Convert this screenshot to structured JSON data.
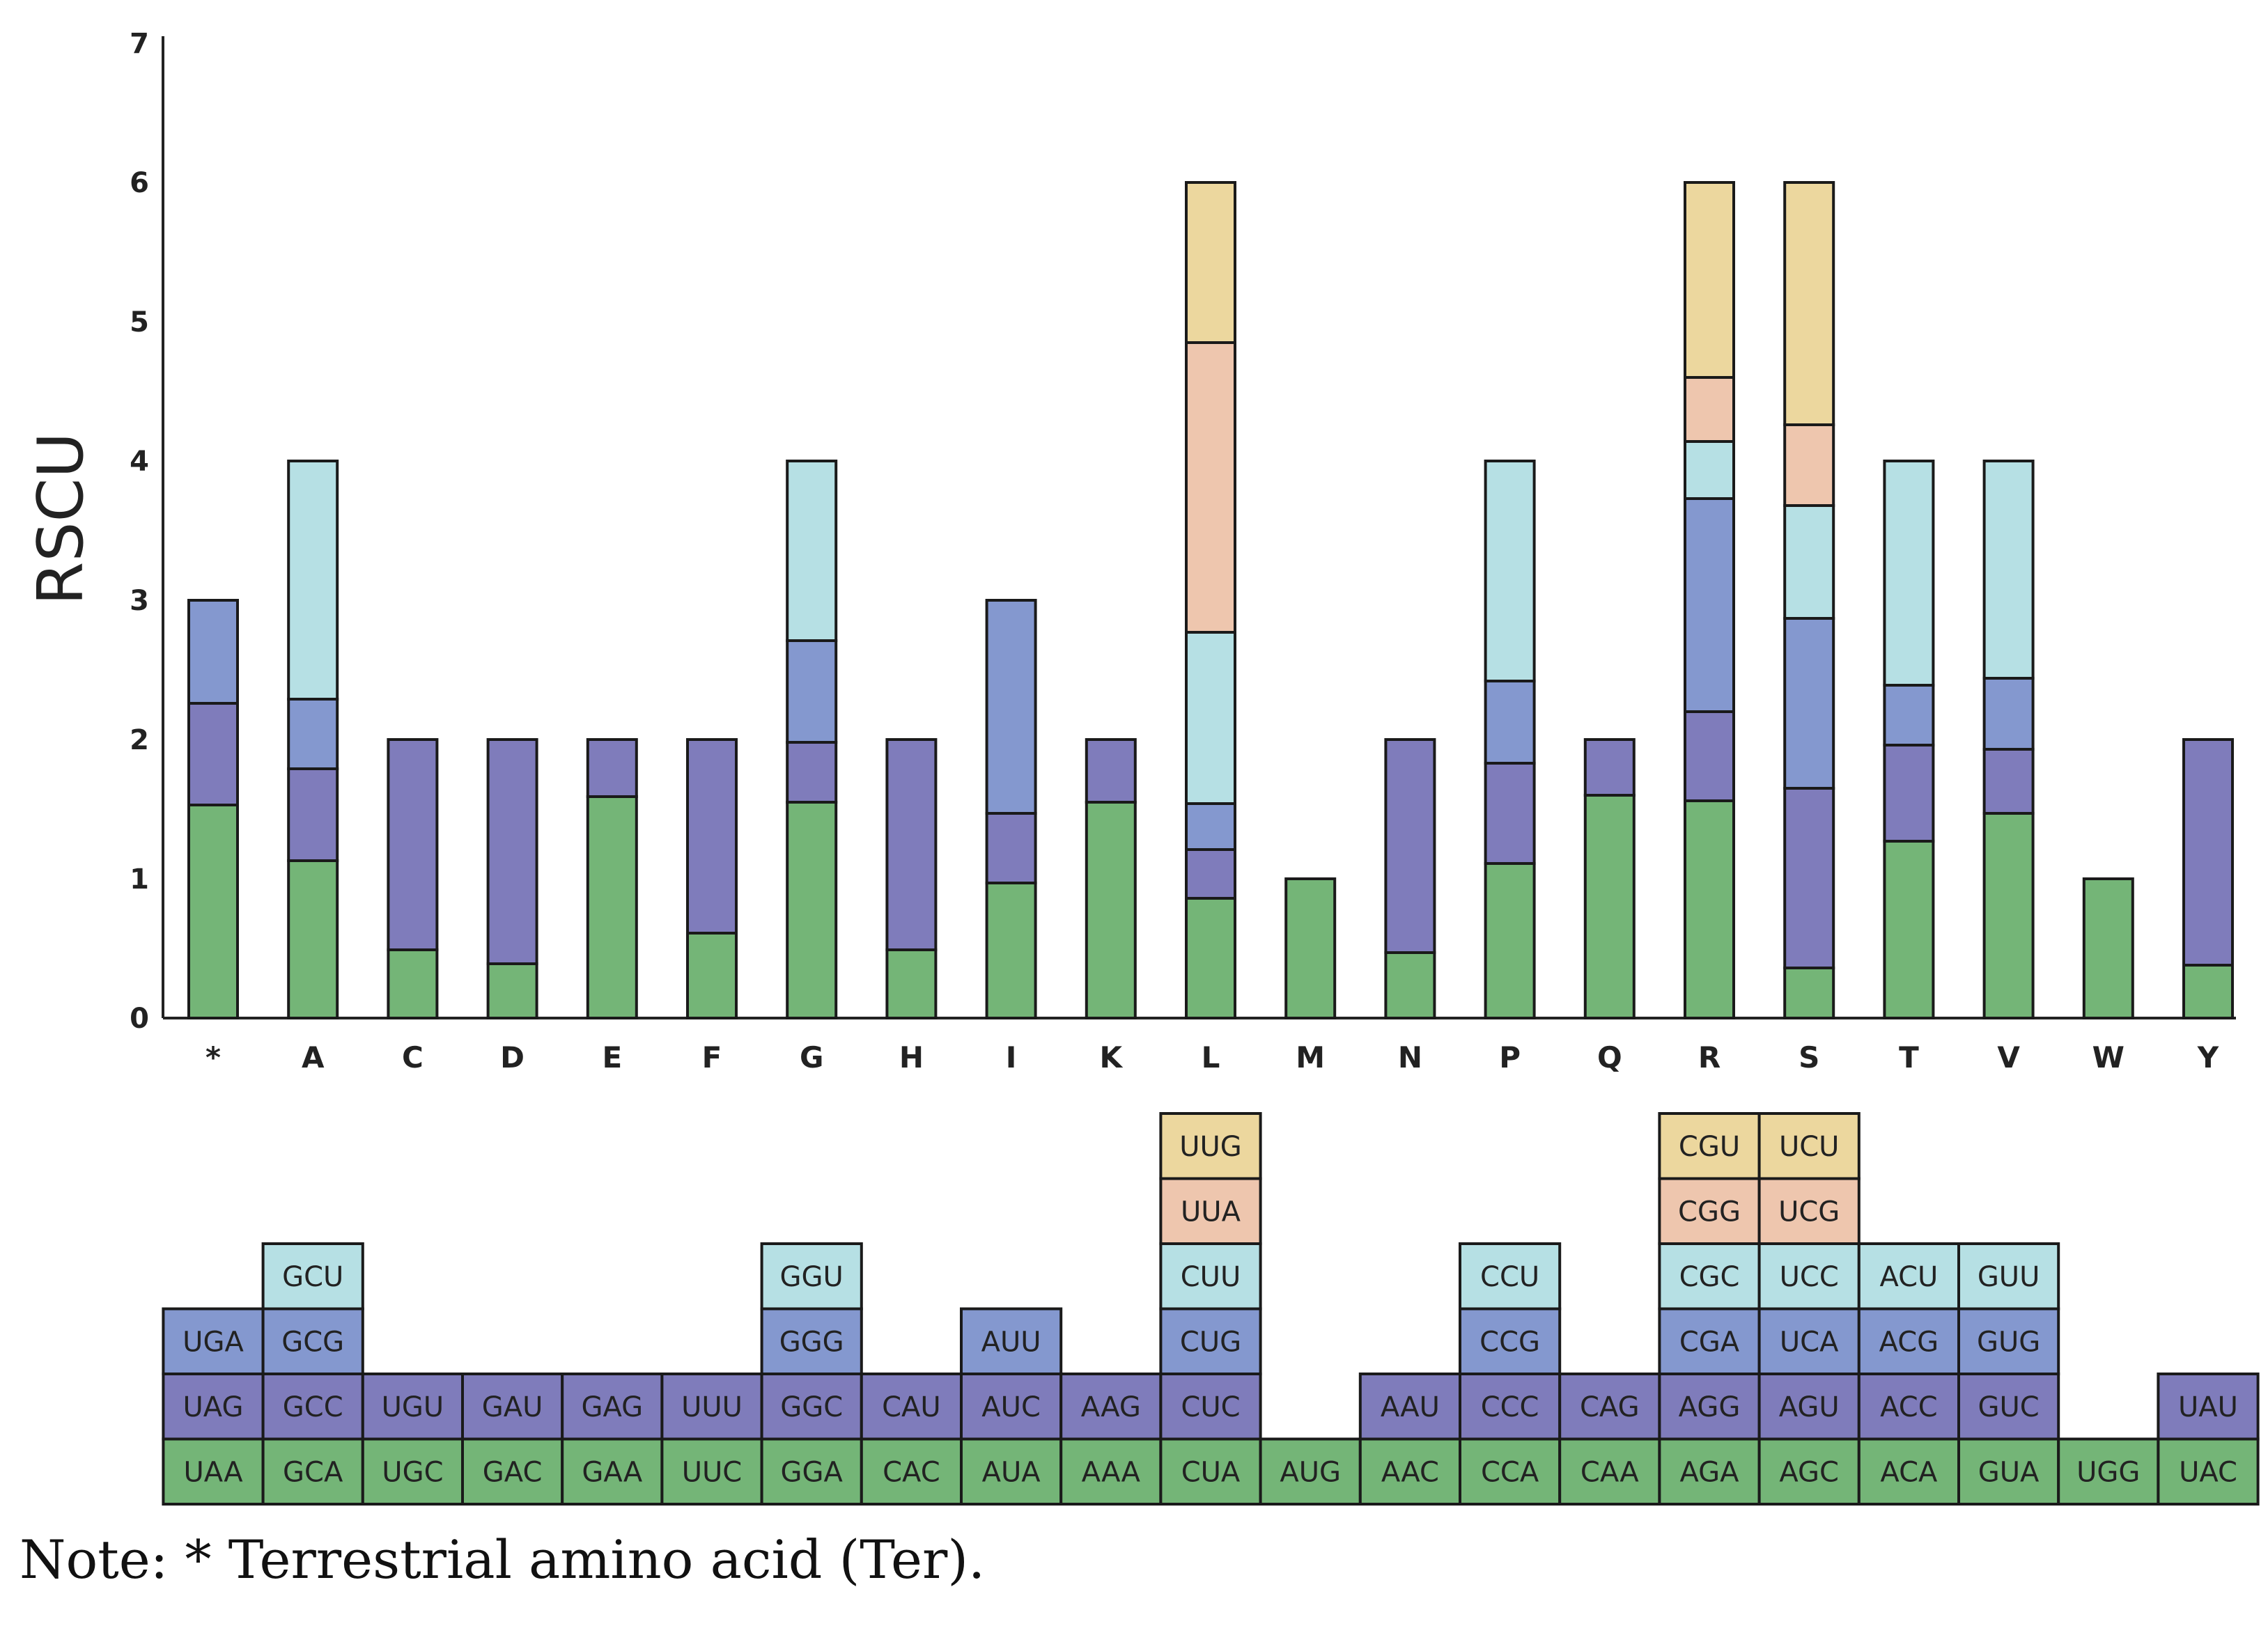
{
  "chart_data": {
    "type": "bar",
    "stacked": true,
    "title": "",
    "xlabel": "",
    "ylabel": "RSCU",
    "ylim": [
      0,
      7
    ],
    "yticks": [
      "0",
      "1",
      "2",
      "3",
      "4",
      "5",
      "6",
      "7"
    ],
    "grid": false,
    "colors": [
      "#74b577",
      "#7f7cbb",
      "#8498cf",
      "#b6e0e4",
      "#eec6ae",
      "#ecd79e"
    ],
    "categories": [
      "*",
      "A",
      "C",
      "D",
      "E",
      "F",
      "G",
      "H",
      "I",
      "K",
      "L",
      "M",
      "N",
      "P",
      "Q",
      "R",
      "S",
      "T",
      "V",
      "W",
      "Y"
    ],
    "stacks": [
      [
        {
          "codon": "UAA",
          "value": 1.53
        },
        {
          "codon": "UAG",
          "value": 0.73
        },
        {
          "codon": "UGA",
          "value": 0.74
        }
      ],
      [
        {
          "codon": "GCA",
          "value": 1.13
        },
        {
          "codon": "GCC",
          "value": 0.66
        },
        {
          "codon": "GCG",
          "value": 0.5
        },
        {
          "codon": "GCU",
          "value": 1.71
        }
      ],
      [
        {
          "codon": "UGC",
          "value": 0.49
        },
        {
          "codon": "UGU",
          "value": 1.51
        }
      ],
      [
        {
          "codon": "GAC",
          "value": 0.39
        },
        {
          "codon": "GAU",
          "value": 1.61
        }
      ],
      [
        {
          "codon": "GAA",
          "value": 1.59
        },
        {
          "codon": "GAG",
          "value": 0.41
        }
      ],
      [
        {
          "codon": "UUC",
          "value": 0.61
        },
        {
          "codon": "UUU",
          "value": 1.39
        }
      ],
      [
        {
          "codon": "GGA",
          "value": 1.55
        },
        {
          "codon": "GGC",
          "value": 0.43
        },
        {
          "codon": "GGG",
          "value": 0.73
        },
        {
          "codon": "GGU",
          "value": 1.29
        }
      ],
      [
        {
          "codon": "CAC",
          "value": 0.49
        },
        {
          "codon": "CAU",
          "value": 1.51
        }
      ],
      [
        {
          "codon": "AUA",
          "value": 0.97
        },
        {
          "codon": "AUC",
          "value": 0.5
        },
        {
          "codon": "AUU",
          "value": 1.53
        }
      ],
      [
        {
          "codon": "AAA",
          "value": 1.55
        },
        {
          "codon": "AAG",
          "value": 0.45
        }
      ],
      [
        {
          "codon": "CUA",
          "value": 0.86
        },
        {
          "codon": "CUC",
          "value": 0.35
        },
        {
          "codon": "CUG",
          "value": 0.33
        },
        {
          "codon": "CUU",
          "value": 1.23
        },
        {
          "codon": "UUA",
          "value": 2.08
        },
        {
          "codon": "UUG",
          "value": 1.15
        }
      ],
      [
        {
          "codon": "AUG",
          "value": 1.0
        }
      ],
      [
        {
          "codon": "AAC",
          "value": 0.47
        },
        {
          "codon": "AAU",
          "value": 1.53
        }
      ],
      [
        {
          "codon": "CCA",
          "value": 1.11
        },
        {
          "codon": "CCC",
          "value": 0.72
        },
        {
          "codon": "CCG",
          "value": 0.59
        },
        {
          "codon": "CCU",
          "value": 1.58
        }
      ],
      [
        {
          "codon": "CAA",
          "value": 1.6
        },
        {
          "codon": "CAG",
          "value": 0.4
        }
      ],
      [
        {
          "codon": "AGA",
          "value": 1.56
        },
        {
          "codon": "AGG",
          "value": 0.64
        },
        {
          "codon": "CGA",
          "value": 1.53
        },
        {
          "codon": "CGC",
          "value": 0.41
        },
        {
          "codon": "CGG",
          "value": 0.46
        },
        {
          "codon": "CGU",
          "value": 1.4
        }
      ],
      [
        {
          "codon": "AGC",
          "value": 0.36
        },
        {
          "codon": "AGU",
          "value": 1.29
        },
        {
          "codon": "UCA",
          "value": 1.22
        },
        {
          "codon": "UCC",
          "value": 0.81
        },
        {
          "codon": "UCG",
          "value": 0.58
        },
        {
          "codon": "UCU",
          "value": 1.74
        }
      ],
      [
        {
          "codon": "ACA",
          "value": 1.27
        },
        {
          "codon": "ACC",
          "value": 0.69
        },
        {
          "codon": "ACG",
          "value": 0.43
        },
        {
          "codon": "ACU",
          "value": 1.61
        }
      ],
      [
        {
          "codon": "GUA",
          "value": 1.47
        },
        {
          "codon": "GUC",
          "value": 0.46
        },
        {
          "codon": "GUG",
          "value": 0.51
        },
        {
          "codon": "GUU",
          "value": 1.56
        }
      ],
      [
        {
          "codon": "UGG",
          "value": 1.0
        }
      ],
      [
        {
          "codon": "UAC",
          "value": 0.38
        },
        {
          "codon": "UAU",
          "value": 1.62
        }
      ]
    ]
  },
  "note": "Note: * Terrestrial amino acid (Ter)."
}
